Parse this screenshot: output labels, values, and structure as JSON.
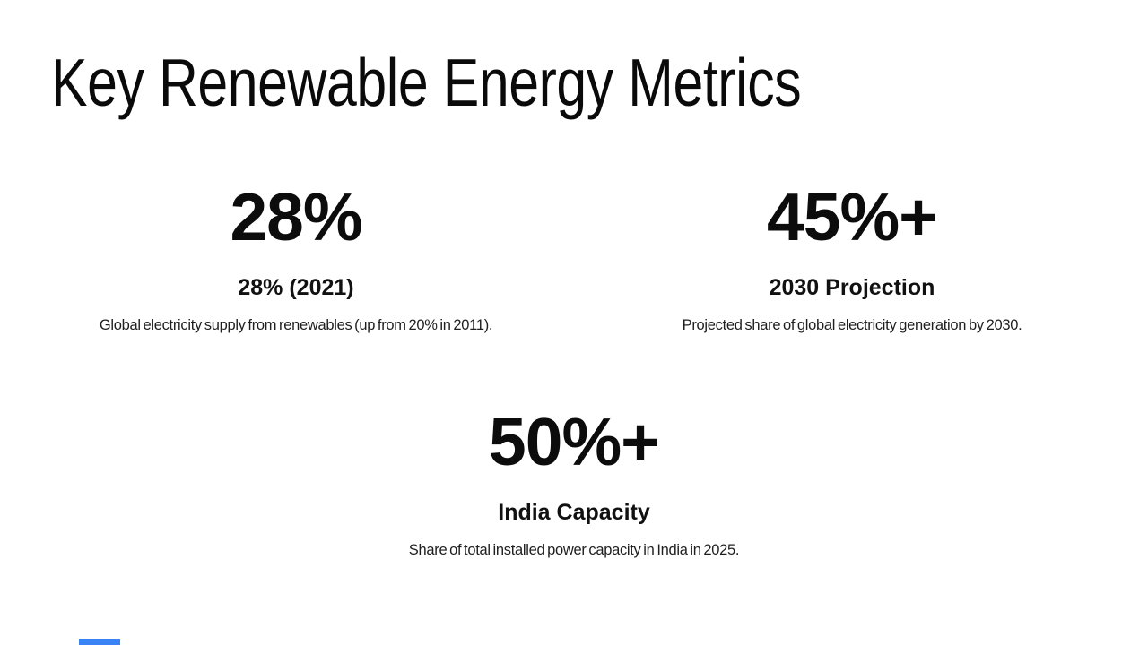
{
  "slide": {
    "title": "Key Renewable Energy Metrics"
  },
  "stats": [
    {
      "value": "28%",
      "label": "28% (2021)",
      "description": "Global electricity supply from renewables (up from 20% in 2011)."
    },
    {
      "value": "45%+",
      "label": "2030 Projection",
      "description": "Projected share of global electricity generation by 2030."
    },
    {
      "value": "50%+",
      "label": "India Capacity",
      "description": "Share of total installed power capacity in India in 2025."
    }
  ],
  "colors": {
    "background": "#ffffff",
    "text": "#0e0e0e",
    "accent_bar": "#3b82f6"
  }
}
